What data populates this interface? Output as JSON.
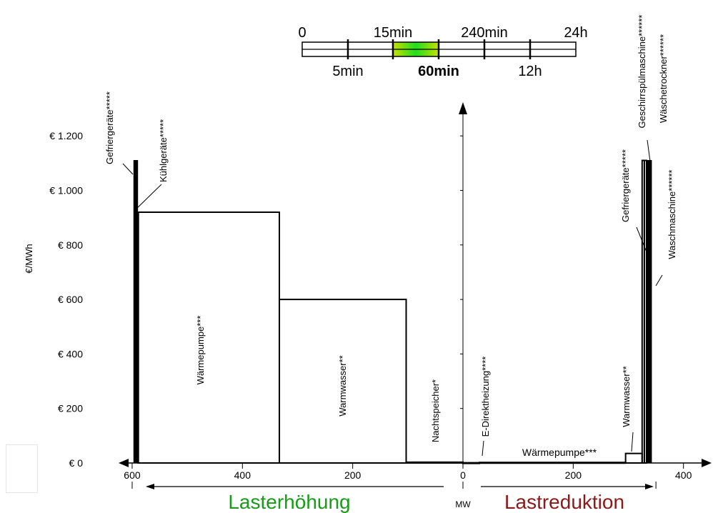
{
  "time_scale": {
    "top_labels": [
      "0",
      "15min",
      "240min",
      "24h"
    ],
    "bottom_labels": [
      "5min",
      "60min",
      "12h"
    ],
    "selected": "60min"
  },
  "chart_data": {
    "type": "bar",
    "ylabel": "€/MWh",
    "xlabel": "MW",
    "ylim": [
      0,
      1300
    ],
    "xlim": [
      -600,
      400
    ],
    "y_ticks": [
      {
        "value": 0,
        "label": "€ 0"
      },
      {
        "value": 200,
        "label": "€ 200"
      },
      {
        "value": 400,
        "label": "€ 400"
      },
      {
        "value": 600,
        "label": "€ 600"
      },
      {
        "value": 800,
        "label": "€ 800"
      },
      {
        "value": 1000,
        "label": "€ 1.000"
      },
      {
        "value": 1200,
        "label": "€ 1.200"
      }
    ],
    "x_ticks": [
      {
        "value": -600,
        "label": "600"
      },
      {
        "value": -400,
        "label": "400"
      },
      {
        "value": -200,
        "label": "200"
      },
      {
        "value": 0,
        "label": "0"
      },
      {
        "value": 200,
        "label": "200"
      },
      {
        "value": 400,
        "label": "400"
      }
    ],
    "left_region_label": "Lasterhöhung",
    "right_region_label": "Lastreduktion",
    "left_region_color": "#1a9a1a",
    "right_region_color": "#8b1a1a",
    "bars": [
      {
        "label": "Gefriergeräte*****",
        "x0": -597,
        "x1": -590,
        "value": 1110,
        "fill": "#000000"
      },
      {
        "label": "Kühlgeräte*****",
        "x0": -590,
        "x1": -589,
        "value": 920,
        "fill": "#000000"
      },
      {
        "label": "Wärmepumpe***",
        "x0": -589,
        "x1": -333,
        "value": 920,
        "fill": "none"
      },
      {
        "label": "Warmwasser**",
        "x0": -333,
        "x1": -103,
        "value": 600,
        "fill": "none"
      },
      {
        "label": "Nachtspeicher*",
        "x0": -103,
        "x1": 0,
        "value": 3,
        "fill": "none"
      },
      {
        "label": "E-Direktheizung****",
        "x0": 0,
        "x1": 30,
        "value": 1,
        "fill": "none"
      },
      {
        "label": "Wärmepumpe***",
        "x0": 30,
        "x1": 295,
        "value": 2,
        "fill": "none"
      },
      {
        "label": "Warmwasser**",
        "x0": 295,
        "x1": 325,
        "value": 35,
        "fill": "none"
      },
      {
        "label": "Gefriergeräte*****",
        "x0": 325,
        "x1": 329,
        "value": 1110,
        "fill": "none"
      },
      {
        "label": "Geschirrspülmaschine******",
        "x0": 329,
        "x1": 333,
        "value": 1110,
        "fill": "none"
      },
      {
        "label": "Wäschetrockner******",
        "x0": 333,
        "x1": 337,
        "value": 1110,
        "fill": "#000000"
      },
      {
        "label": "Waschmaschine******",
        "x0": 337,
        "x1": 342,
        "value": 1110,
        "fill": "#000000"
      }
    ]
  }
}
